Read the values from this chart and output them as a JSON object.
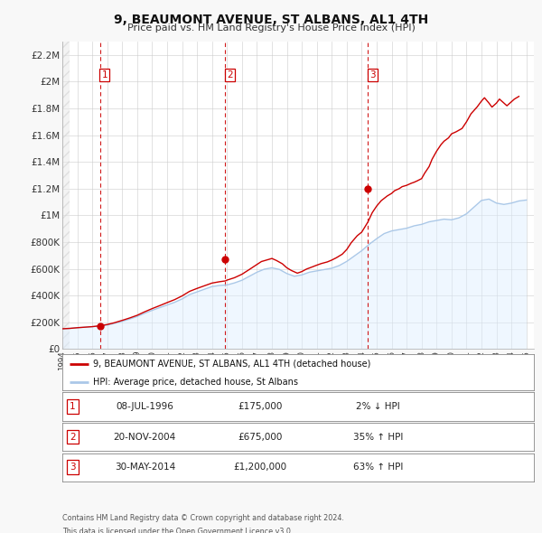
{
  "title": "9, BEAUMONT AVENUE, ST ALBANS, AL1 4TH",
  "subtitle": "Price paid vs. HM Land Registry's House Price Index (HPI)",
  "xlim": [
    1994.0,
    2025.5
  ],
  "ylim": [
    0,
    2300000
  ],
  "yticks": [
    0,
    200000,
    400000,
    600000,
    800000,
    1000000,
    1200000,
    1400000,
    1600000,
    1800000,
    2000000,
    2200000
  ],
  "ytick_labels": [
    "£0",
    "£200K",
    "£400K",
    "£600K",
    "£800K",
    "£1M",
    "£1.2M",
    "£1.4M",
    "£1.6M",
    "£1.8M",
    "£2M",
    "£2.2M"
  ],
  "sale_color": "#cc0000",
  "hpi_color": "#aac8e8",
  "hpi_fill_color": "#ddeeff",
  "sale_label": "9, BEAUMONT AVENUE, ST ALBANS, AL1 4TH (detached house)",
  "hpi_label": "HPI: Average price, detached house, St Albans",
  "purchases": [
    {
      "num": 1,
      "date": "08-JUL-1996",
      "year": 1996.52,
      "price": 175000,
      "pct": "2%",
      "dir": "↓"
    },
    {
      "num": 2,
      "date": "20-NOV-2004",
      "year": 2004.89,
      "price": 675000,
      "pct": "35%",
      "dir": "↑"
    },
    {
      "num": 3,
      "date": "30-MAY-2014",
      "year": 2014.41,
      "price": 1200000,
      "pct": "63%",
      "dir": "↑"
    }
  ],
  "footer1": "Contains HM Land Registry data © Crown copyright and database right 2024.",
  "footer2": "This data is licensed under the Open Government Licence v3.0.",
  "background_color": "#f8f8f8",
  "plot_background": "#ffffff",
  "hpi_data_x": [
    1994.0,
    1994.5,
    1995.0,
    1995.5,
    1996.0,
    1996.5,
    1997.0,
    1997.5,
    1998.0,
    1998.5,
    1999.0,
    1999.5,
    2000.0,
    2000.5,
    2001.0,
    2001.5,
    2002.0,
    2002.5,
    2003.0,
    2003.5,
    2004.0,
    2004.5,
    2005.0,
    2005.5,
    2006.0,
    2006.5,
    2007.0,
    2007.5,
    2008.0,
    2008.5,
    2009.0,
    2009.5,
    2010.0,
    2010.5,
    2011.0,
    2011.5,
    2012.0,
    2012.5,
    2013.0,
    2013.5,
    2014.0,
    2014.5,
    2015.0,
    2015.5,
    2016.0,
    2016.5,
    2017.0,
    2017.5,
    2018.0,
    2018.5,
    2019.0,
    2019.5,
    2020.0,
    2020.5,
    2021.0,
    2021.5,
    2022.0,
    2022.5,
    2023.0,
    2023.5,
    2024.0,
    2024.5,
    2025.0
  ],
  "hpi_data_y": [
    152000,
    155000,
    160000,
    164000,
    168000,
    172000,
    180000,
    193000,
    208000,
    225000,
    244000,
    268000,
    290000,
    310000,
    330000,
    350000,
    375000,
    408000,
    428000,
    448000,
    468000,
    476000,
    480000,
    495000,
    515000,
    545000,
    575000,
    598000,
    608000,
    596000,
    565000,
    545000,
    555000,
    575000,
    585000,
    595000,
    605000,
    625000,
    656000,
    696000,
    736000,
    784000,
    826000,
    864000,
    884000,
    894000,
    904000,
    922000,
    933000,
    952000,
    962000,
    972000,
    967000,
    982000,
    1012000,
    1062000,
    1112000,
    1122000,
    1092000,
    1082000,
    1092000,
    1108000,
    1115000
  ],
  "price_line_x": [
    1994.0,
    1994.5,
    1995.0,
    1995.5,
    1996.0,
    1996.52,
    1997.0,
    1997.5,
    1998.0,
    1998.5,
    1999.0,
    1999.5,
    2000.0,
    2000.5,
    2001.0,
    2001.5,
    2002.0,
    2002.5,
    2003.0,
    2003.5,
    2004.0,
    2004.5,
    2004.89,
    2005.0,
    2005.5,
    2006.0,
    2006.5,
    2007.0,
    2007.3,
    2007.7,
    2008.0,
    2008.3,
    2008.7,
    2009.0,
    2009.3,
    2009.7,
    2010.0,
    2010.3,
    2010.7,
    2011.0,
    2011.3,
    2011.7,
    2012.0,
    2012.3,
    2012.7,
    2013.0,
    2013.3,
    2013.7,
    2014.0,
    2014.41,
    2014.7,
    2015.0,
    2015.3,
    2015.7,
    2016.0,
    2016.2,
    2016.5,
    2016.7,
    2017.0,
    2017.3,
    2017.5,
    2017.7,
    2018.0,
    2018.2,
    2018.5,
    2018.7,
    2019.0,
    2019.3,
    2019.5,
    2019.8,
    2020.0,
    2020.3,
    2020.7,
    2021.0,
    2021.3,
    2021.7,
    2022.0,
    2022.2,
    2022.5,
    2022.7,
    2023.0,
    2023.2,
    2023.5,
    2023.7,
    2024.0,
    2024.2,
    2024.5
  ],
  "price_line_y": [
    152000,
    155000,
    160000,
    164000,
    168000,
    175000,
    184000,
    198000,
    215000,
    233000,
    253000,
    279000,
    303000,
    325000,
    348000,
    370000,
    398000,
    432000,
    454000,
    474000,
    494000,
    504000,
    510000,
    516000,
    534000,
    560000,
    596000,
    633000,
    655000,
    668000,
    678000,
    663000,
    638000,
    608000,
    588000,
    568000,
    580000,
    598000,
    615000,
    628000,
    640000,
    652000,
    666000,
    683000,
    710000,
    745000,
    796000,
    848000,
    875000,
    950000,
    1020000,
    1070000,
    1110000,
    1145000,
    1165000,
    1185000,
    1200000,
    1215000,
    1225000,
    1240000,
    1248000,
    1258000,
    1275000,
    1315000,
    1365000,
    1420000,
    1480000,
    1530000,
    1555000,
    1580000,
    1610000,
    1625000,
    1650000,
    1700000,
    1760000,
    1810000,
    1855000,
    1880000,
    1840000,
    1810000,
    1840000,
    1870000,
    1840000,
    1820000,
    1850000,
    1870000,
    1890000
  ]
}
